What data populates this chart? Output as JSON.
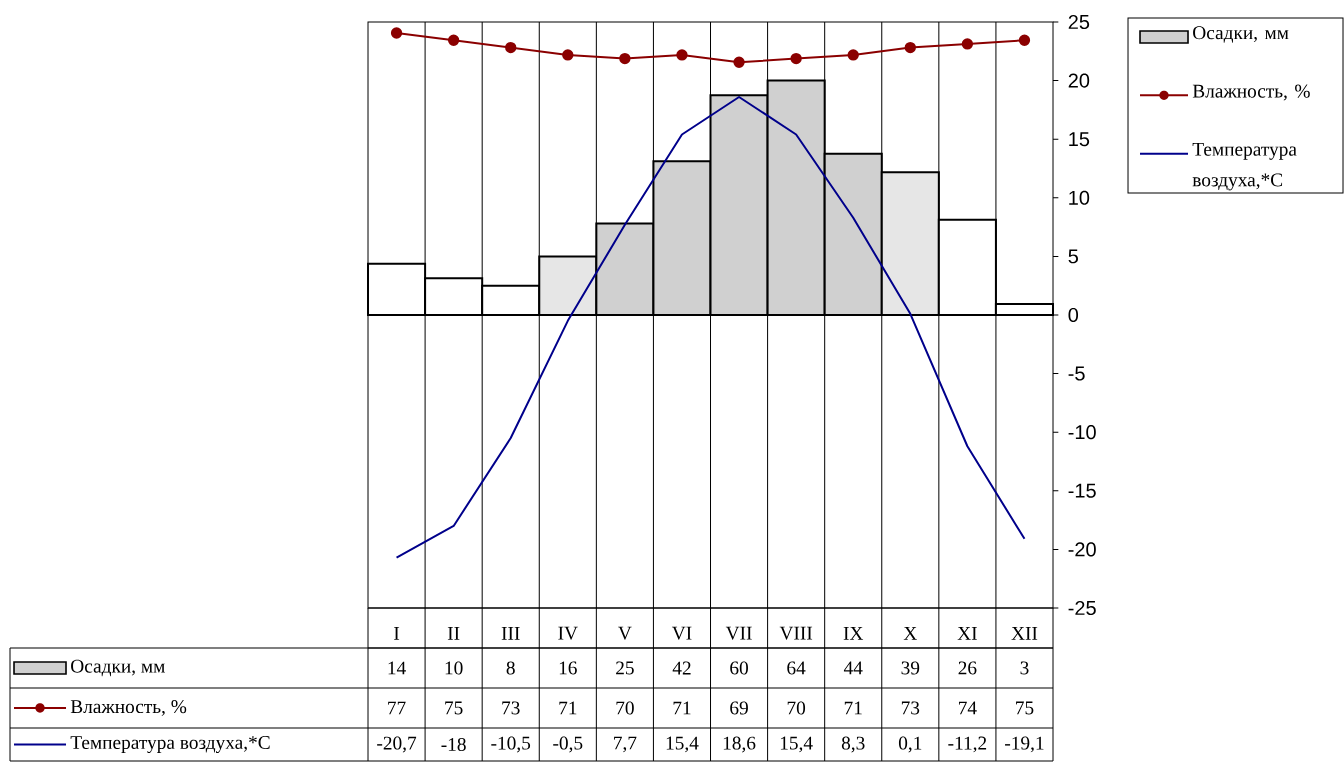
{
  "chart_data": {
    "type": "bar",
    "categories": [
      "I",
      "II",
      "III",
      "IV",
      "V",
      "VI",
      "VII",
      "VIII",
      "IX",
      "X",
      "XI",
      "XII"
    ],
    "series": [
      {
        "name": "Осадки, мм",
        "axis": "y2",
        "colors": [
          "#ffffff",
          "#ffffff",
          "#ffffff",
          "#e6e6e6",
          "#d0d0d0",
          "#d0d0d0",
          "#d0d0d0",
          "#d0d0d0",
          "#d0d0d0",
          "#e6e6e6",
          "#ffffff",
          "#ffffff"
        ],
        "values": [
          14,
          10,
          8,
          16,
          25,
          42,
          60,
          64,
          44,
          39,
          26,
          3
        ],
        "value_labels": [
          "14",
          "10",
          "8",
          "16",
          "25",
          "42",
          "60",
          "64",
          "44",
          "39",
          "26",
          "3"
        ]
      },
      {
        "name": "Влажность, %",
        "type": "line",
        "axis": "y2",
        "color": "#8b0000",
        "marker": "circle",
        "values": [
          77,
          75,
          73,
          71,
          70,
          71,
          69,
          70,
          71,
          73,
          74,
          75
        ],
        "value_labels": [
          "77",
          "75",
          "73",
          "71",
          "70",
          "71",
          "69",
          "70",
          "71",
          "73",
          "74",
          "75"
        ]
      },
      {
        "name": "Температура воздуха,*С",
        "type": "line",
        "color": "#00008b",
        "values": [
          -20.7,
          -18,
          -10.5,
          -0.5,
          7.7,
          15.4,
          18.6,
          15.4,
          8.3,
          0.1,
          -11.2,
          -19.1
        ],
        "value_labels": [
          "-20,7",
          "-18",
          "-10,5",
          "-0,5",
          "7,7",
          "15,4",
          "18,6",
          "15,4",
          "8,3",
          "0,1",
          "-11,2",
          "-19,1"
        ]
      }
    ],
    "ylim": [
      -25,
      25
    ],
    "yticks": [
      -25,
      -20,
      -15,
      -10,
      -5,
      0,
      5,
      10,
      15,
      20,
      25
    ],
    "y2lim": [
      -80,
      80
    ],
    "grid": "x",
    "legend": "top right"
  }
}
